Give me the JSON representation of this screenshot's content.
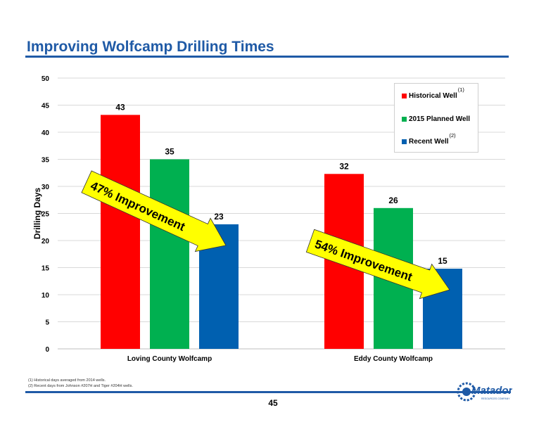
{
  "page": {
    "title": "Improving Wolfcamp Drilling Times",
    "page_number": "45",
    "footnotes": [
      "(1)  Historical days averaged from 2014 wells.",
      "(2)  Recent days from Johnson #207H and Tiger #204H wells."
    ],
    "logo_text": "Matador",
    "logo_subtext": "RESOURCES COMPANY"
  },
  "chart_data": {
    "type": "bar",
    "ylabel": "Drilling Days",
    "xlabel": "",
    "ylim": [
      0,
      50
    ],
    "yticks": [
      0,
      5,
      10,
      15,
      20,
      25,
      30,
      35,
      40,
      45,
      50
    ],
    "grid": true,
    "legend_position": "top-right",
    "categories": [
      "Loving County Wolfcamp",
      "Eddy County Wolfcamp"
    ],
    "series": [
      {
        "name": "Historical Well",
        "footnote": "(1)",
        "color": "#ff0000",
        "values": [
          43.2,
          32.3
        ],
        "labels": [
          "43",
          "32"
        ]
      },
      {
        "name": "2015 Planned Well",
        "footnote": "",
        "color": "#00b050",
        "values": [
          35,
          26
        ],
        "labels": [
          "35",
          "26"
        ]
      },
      {
        "name": "Recent Well",
        "footnote": "(2)",
        "color": "#0060b0",
        "values": [
          23,
          14.8
        ],
        "labels": [
          "23",
          "15"
        ]
      }
    ],
    "annotations": [
      {
        "text": "47% Improvement",
        "category": 0,
        "fill": "#ffff00"
      },
      {
        "text": "54% Improvement",
        "category": 1,
        "fill": "#ffff00"
      }
    ]
  }
}
